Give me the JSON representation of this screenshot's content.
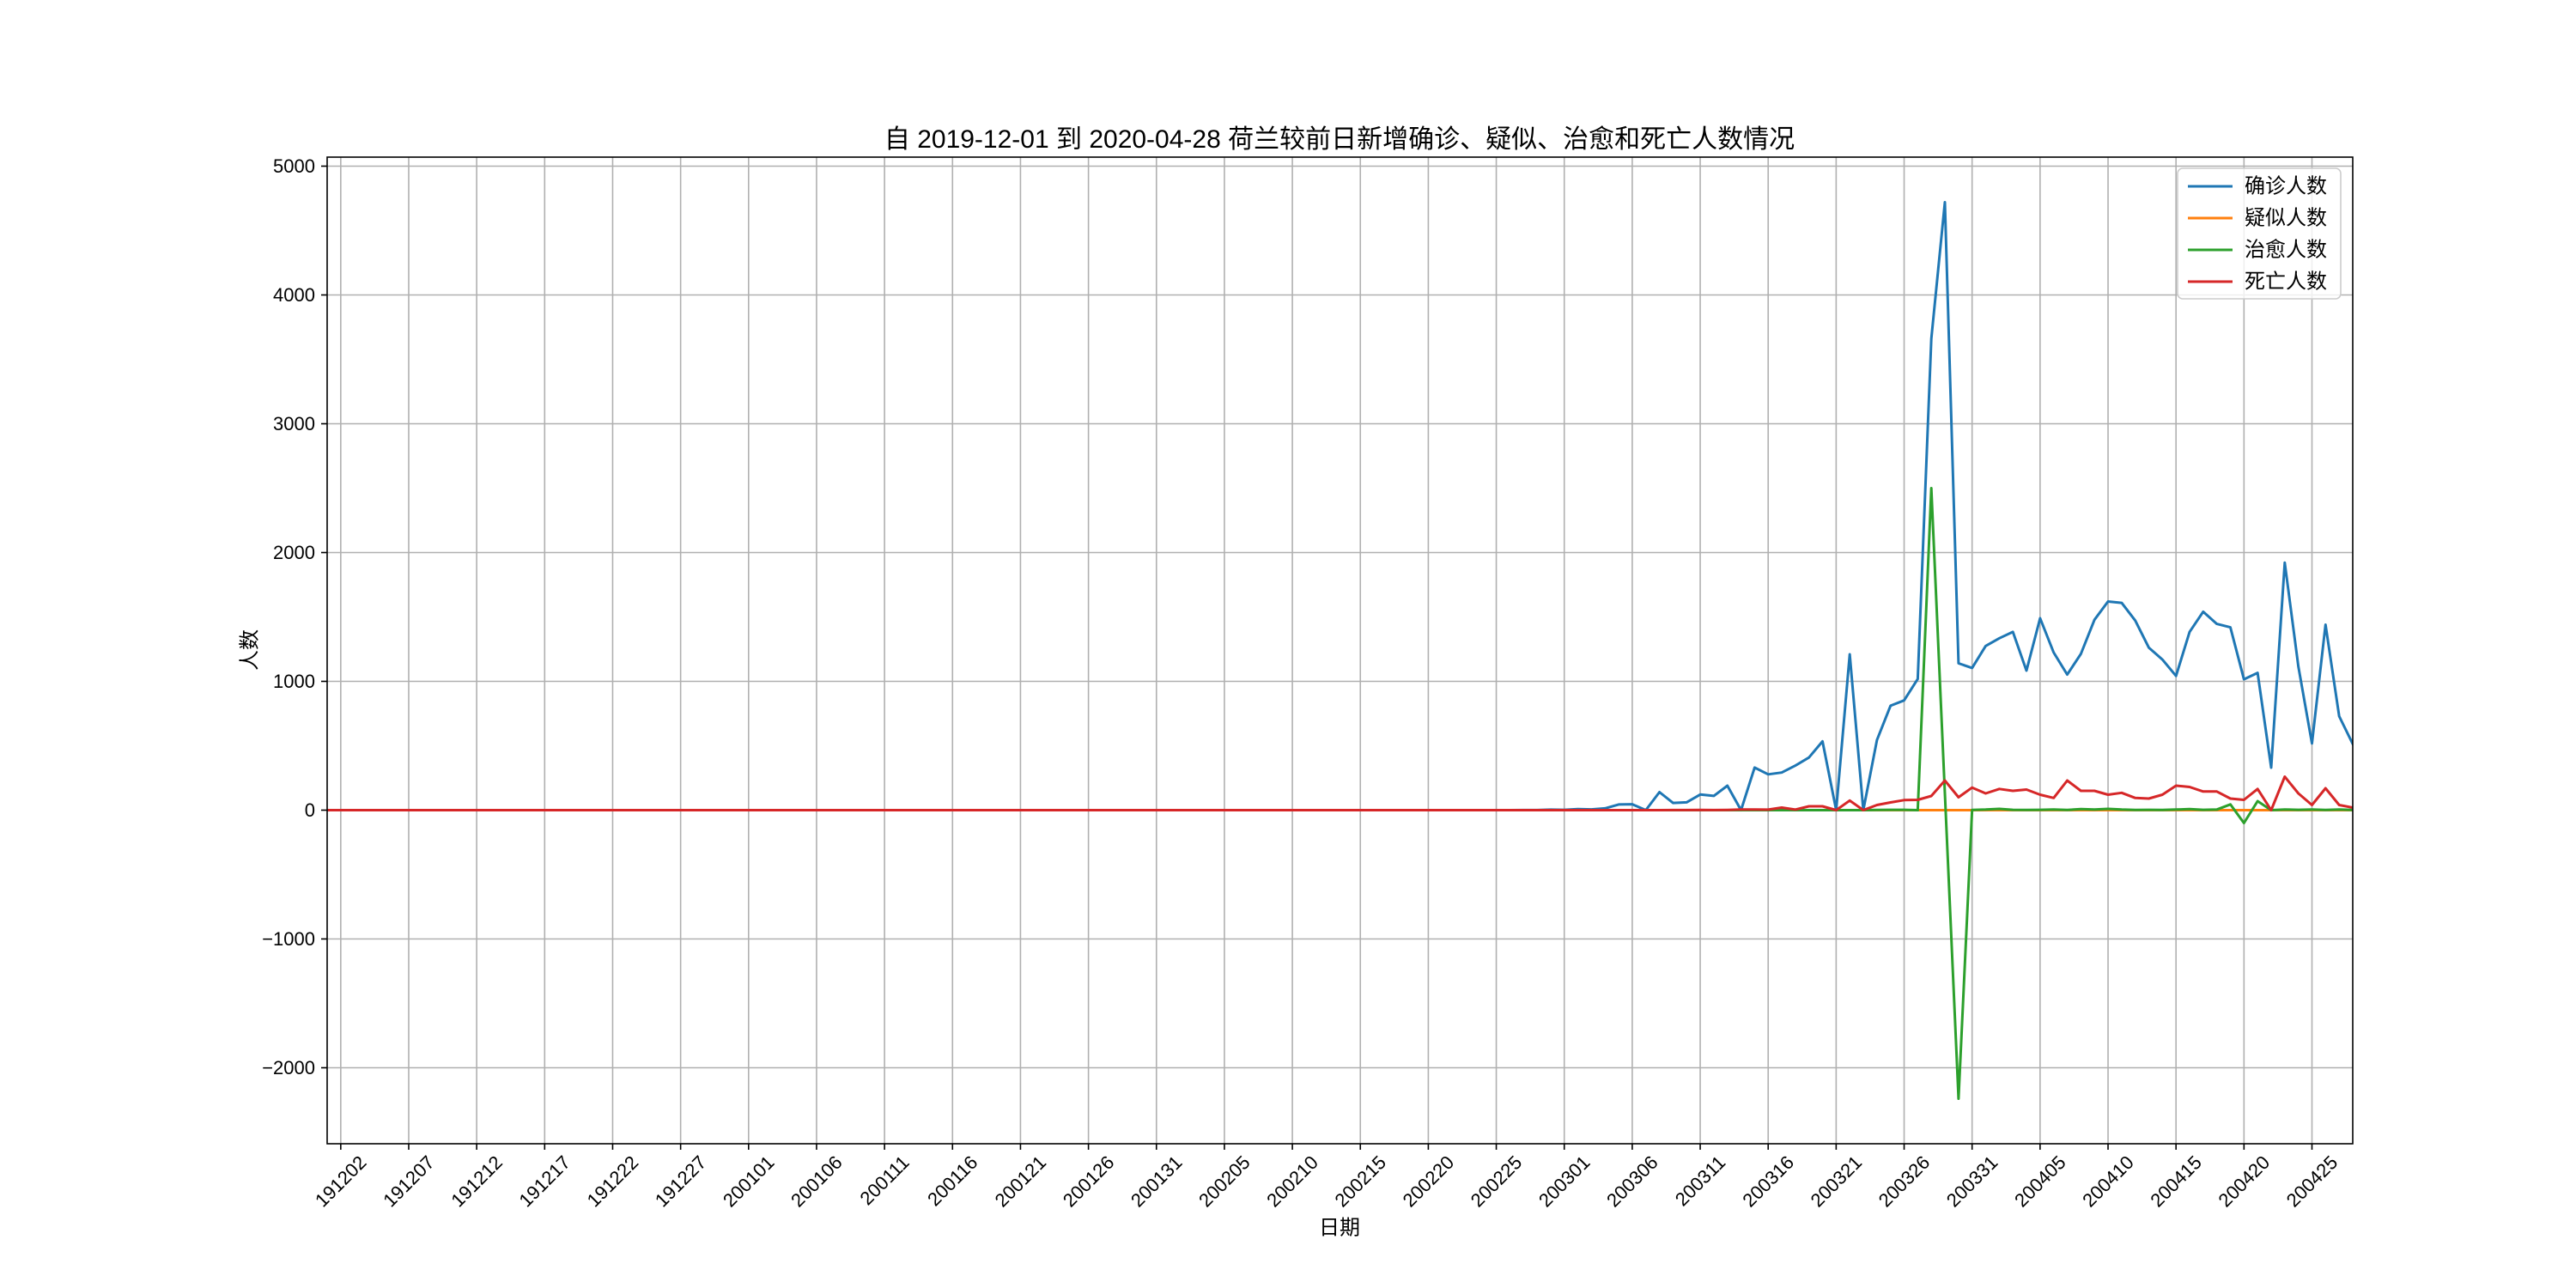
{
  "chart_data": {
    "type": "line",
    "title": "自 2019-12-01 到 2020-04-28 荷兰较前日新增确诊、疑似、治愈和死亡人数情况",
    "xlabel": "日期",
    "ylabel": "人数",
    "x": [
      "191201",
      "191202",
      "191203",
      "191204",
      "191205",
      "191206",
      "191207",
      "191208",
      "191209",
      "191210",
      "191211",
      "191212",
      "191213",
      "191214",
      "191215",
      "191216",
      "191217",
      "191218",
      "191219",
      "191220",
      "191221",
      "191222",
      "191223",
      "191224",
      "191225",
      "191226",
      "191227",
      "191228",
      "191229",
      "191230",
      "191231",
      "200101",
      "200102",
      "200103",
      "200104",
      "200105",
      "200106",
      "200107",
      "200108",
      "200109",
      "200110",
      "200111",
      "200112",
      "200113",
      "200114",
      "200115",
      "200116",
      "200117",
      "200118",
      "200119",
      "200120",
      "200121",
      "200122",
      "200123",
      "200124",
      "200125",
      "200126",
      "200127",
      "200128",
      "200129",
      "200130",
      "200131",
      "200201",
      "200202",
      "200203",
      "200204",
      "200205",
      "200206",
      "200207",
      "200208",
      "200209",
      "200210",
      "200211",
      "200212",
      "200213",
      "200214",
      "200215",
      "200216",
      "200217",
      "200218",
      "200219",
      "200220",
      "200221",
      "200222",
      "200223",
      "200224",
      "200225",
      "200226",
      "200227",
      "200228",
      "200229",
      "200301",
      "200302",
      "200303",
      "200304",
      "200305",
      "200306",
      "200307",
      "200308",
      "200309",
      "200310",
      "200311",
      "200312",
      "200313",
      "200314",
      "200315",
      "200316",
      "200317",
      "200318",
      "200319",
      "200320",
      "200321",
      "200322",
      "200323",
      "200324",
      "200325",
      "200326",
      "200327",
      "200328",
      "200329",
      "200330",
      "200331",
      "200401",
      "200402",
      "200403",
      "200404",
      "200405",
      "200406",
      "200407",
      "200408",
      "200409",
      "200410",
      "200411",
      "200412",
      "200413",
      "200414",
      "200415",
      "200416",
      "200417",
      "200418",
      "200419",
      "200420",
      "200421",
      "200422",
      "200423",
      "200424",
      "200425",
      "200426",
      "200427",
      "200428"
    ],
    "xticks": [
      "191202",
      "191207",
      "191212",
      "191217",
      "191222",
      "191227",
      "200101",
      "200106",
      "200111",
      "200116",
      "200121",
      "200126",
      "200131",
      "200205",
      "200210",
      "200215",
      "200220",
      "200225",
      "200301",
      "200306",
      "200311",
      "200316",
      "200321",
      "200326",
      "200331",
      "200405",
      "200410",
      "200415",
      "200420",
      "200425"
    ],
    "xlim": [
      "191201",
      "200428"
    ],
    "yticks": [
      -2000,
      -1000,
      0,
      1000,
      2000,
      3000,
      4000,
      5000
    ],
    "ylim": [
      -2590,
      5070
    ],
    "grid": true,
    "legend": "upper right",
    "series": [
      {
        "name": "确诊人数",
        "color": "#1f77b4",
        "values": [
          0,
          0,
          0,
          0,
          0,
          0,
          0,
          0,
          0,
          0,
          0,
          0,
          0,
          0,
          0,
          0,
          0,
          0,
          0,
          0,
          0,
          0,
          0,
          0,
          0,
          0,
          0,
          0,
          0,
          0,
          0,
          0,
          0,
          0,
          0,
          0,
          0,
          0,
          0,
          0,
          0,
          0,
          0,
          0,
          0,
          0,
          0,
          0,
          0,
          0,
          0,
          0,
          0,
          0,
          0,
          0,
          0,
          0,
          0,
          0,
          0,
          0,
          0,
          0,
          0,
          0,
          0,
          0,
          0,
          0,
          0,
          0,
          0,
          0,
          0,
          0,
          0,
          0,
          0,
          0,
          0,
          0,
          0,
          0,
          0,
          0,
          0,
          0,
          1,
          1,
          4,
          3,
          8,
          6,
          14,
          44,
          46,
          0,
          140,
          56,
          61,
          121,
          111,
          190,
          0,
          331,
          278,
          292,
          346,
          409,
          534,
          0,
          1210,
          0,
          545,
          811,
          852,
          1019,
          3660,
          4720,
          1140,
          1104,
          1275,
          1335,
          1384,
          1083,
          1490,
          1224,
          1053,
          1213,
          1478,
          1620,
          1609,
          1472,
          1262,
          1169,
          1042,
          1384,
          1541,
          1446,
          1419,
          1016,
          1066,
          330,
          1921,
          1114,
          518,
          1440,
          729,
          514
        ]
      },
      {
        "name": "疑似人数",
        "color": "#ff7f0e",
        "values": [
          0,
          0,
          0,
          0,
          0,
          0,
          0,
          0,
          0,
          0,
          0,
          0,
          0,
          0,
          0,
          0,
          0,
          0,
          0,
          0,
          0,
          0,
          0,
          0,
          0,
          0,
          0,
          0,
          0,
          0,
          0,
          0,
          0,
          0,
          0,
          0,
          0,
          0,
          0,
          0,
          0,
          0,
          0,
          0,
          0,
          0,
          0,
          0,
          0,
          0,
          0,
          0,
          0,
          0,
          0,
          0,
          0,
          0,
          0,
          0,
          0,
          0,
          0,
          0,
          0,
          0,
          0,
          0,
          0,
          0,
          0,
          0,
          0,
          0,
          0,
          0,
          0,
          0,
          0,
          0,
          0,
          0,
          0,
          0,
          0,
          0,
          0,
          0,
          0,
          0,
          0,
          0,
          0,
          0,
          0,
          0,
          0,
          0,
          0,
          0,
          0,
          0,
          0,
          0,
          0,
          0,
          0,
          0,
          0,
          0,
          0,
          0,
          0,
          0,
          0,
          0,
          0,
          0,
          0,
          0,
          0,
          0,
          0,
          0,
          0,
          0,
          0,
          0,
          0,
          0,
          0,
          0,
          0,
          0,
          0,
          0,
          0,
          0,
          0,
          0,
          0,
          0,
          0,
          0,
          0,
          0,
          0,
          0,
          0,
          0
        ]
      },
      {
        "name": "治愈人数",
        "color": "#2ca02c",
        "values": [
          0,
          0,
          0,
          0,
          0,
          0,
          0,
          0,
          0,
          0,
          0,
          0,
          0,
          0,
          0,
          0,
          0,
          0,
          0,
          0,
          0,
          0,
          0,
          0,
          0,
          0,
          0,
          0,
          0,
          0,
          0,
          0,
          0,
          0,
          0,
          0,
          0,
          0,
          0,
          0,
          0,
          0,
          0,
          0,
          0,
          0,
          0,
          0,
          0,
          0,
          0,
          0,
          0,
          0,
          0,
          0,
          0,
          0,
          0,
          0,
          0,
          0,
          0,
          0,
          0,
          0,
          0,
          0,
          0,
          0,
          0,
          0,
          0,
          0,
          0,
          0,
          0,
          0,
          0,
          0,
          0,
          0,
          0,
          0,
          0,
          0,
          0,
          0,
          0,
          0,
          0,
          0,
          0,
          0,
          0,
          0,
          0,
          0,
          0,
          0,
          0,
          0,
          0,
          0,
          0,
          0,
          0,
          0,
          0,
          0,
          0,
          0,
          0,
          0,
          2,
          3,
          3,
          0,
          2500,
          130,
          -2240,
          2,
          5,
          10,
          3,
          2,
          3,
          5,
          2,
          8,
          5,
          10,
          5,
          2,
          3,
          2,
          5,
          8,
          3,
          5,
          45,
          -100,
          70,
          0,
          5,
          3,
          5,
          2,
          5,
          2
        ]
      },
      {
        "name": "死亡人数",
        "color": "#d62728",
        "values": [
          0,
          0,
          0,
          0,
          0,
          0,
          0,
          0,
          0,
          0,
          0,
          0,
          0,
          0,
          0,
          0,
          0,
          0,
          0,
          0,
          0,
          0,
          0,
          0,
          0,
          0,
          0,
          0,
          0,
          0,
          0,
          0,
          0,
          0,
          0,
          0,
          0,
          0,
          0,
          0,
          0,
          0,
          0,
          0,
          0,
          0,
          0,
          0,
          0,
          0,
          0,
          0,
          0,
          0,
          0,
          0,
          0,
          0,
          0,
          0,
          0,
          0,
          0,
          0,
          0,
          0,
          0,
          0,
          0,
          0,
          0,
          0,
          0,
          0,
          0,
          0,
          0,
          0,
          0,
          0,
          0,
          0,
          0,
          0,
          0,
          0,
          0,
          0,
          0,
          0,
          0,
          0,
          0,
          0,
          0,
          0,
          0,
          0,
          0,
          1,
          1,
          2,
          1,
          2,
          5,
          5,
          4,
          20,
          5,
          30,
          30,
          0,
          75,
          0,
          40,
          60,
          78,
          80,
          110,
          230,
          100,
          175,
          130,
          165,
          150,
          160,
          120,
          95,
          230,
          150,
          150,
          120,
          135,
          95,
          90,
          120,
          190,
          180,
          145,
          145,
          90,
          80,
          165,
          0,
          260,
          130,
          40,
          170,
          40,
          20
        ]
      }
    ]
  }
}
